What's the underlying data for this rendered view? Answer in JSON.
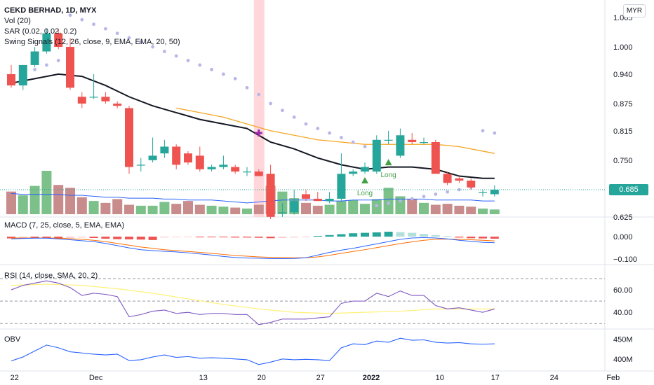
{
  "header": {
    "title": "CEKD BERHAD, 1D, MYX",
    "indicators": [
      "Vol (20)",
      "SAR (0.02, 0.02, 0.2)",
      "Swing Signals (12, 26, close, 9, EMA, EMA, 20, 50)"
    ]
  },
  "currency": "MYR",
  "last_price": "0.685",
  "panes": {
    "macd": "MACD (7, 25, close, 5, EMA, EMA)",
    "rsi": "RSI (14, close, SMA, 20, 2)",
    "obv": "OBV"
  },
  "colors": {
    "up": "#26a69a",
    "down": "#ef5350",
    "vol_up": "#7cc08a",
    "vol_down": "#c98c8c",
    "sar": "#b8b6e8",
    "ema20": "#131722",
    "ema50": "#f5a623",
    "signal": "#43a047",
    "sell_mark": "#9c27b0",
    "highlight": "#ffcdd2",
    "rsi": "#7e57c2",
    "rsi_ma": "#fff176",
    "macd": "#2962ff",
    "macd_signal": "#ff6d00",
    "obv": "#2962ff",
    "vol_ma": "#2962ff"
  },
  "chart_data": [
    {
      "type": "candlestick",
      "title": "CEKD BERHAD, 1D, MYX",
      "x_ticks": [
        "22",
        "Dec",
        "13",
        "20",
        "27",
        "2022",
        "10",
        "17",
        "24",
        "Feb"
      ],
      "y_ticks": [
        "1.065",
        "1.000",
        "0.940",
        "0.875",
        "0.815",
        "0.750",
        "0.685",
        "0.625"
      ],
      "ylim": [
        0.6,
        1.085
      ],
      "candles": [
        {
          "date": "Nov 19",
          "o": 0.94,
          "h": 0.96,
          "l": 0.91,
          "c": 0.915
        },
        {
          "date": "Nov 22",
          "o": 0.915,
          "h": 0.96,
          "l": 0.905,
          "c": 0.96
        },
        {
          "date": "Nov 23",
          "o": 0.96,
          "h": 1.0,
          "l": 0.955,
          "c": 0.99
        },
        {
          "date": "Nov 24",
          "o": 0.99,
          "h": 1.04,
          "l": 0.985,
          "c": 1.03
        },
        {
          "date": "Nov 25",
          "o": 1.03,
          "h": 1.04,
          "l": 0.995,
          "c": 1.0
        },
        {
          "date": "Nov 26",
          "o": 1.0,
          "h": 1.02,
          "l": 0.905,
          "c": 0.91
        },
        {
          "date": "Nov 29",
          "o": 0.89,
          "h": 0.9,
          "l": 0.865,
          "c": 0.875
        },
        {
          "date": "Nov 30",
          "o": 0.89,
          "h": 0.94,
          "l": 0.885,
          "c": 0.89
        },
        {
          "date": "Dec 1",
          "o": 0.89,
          "h": 0.9,
          "l": 0.875,
          "c": 0.88
        },
        {
          "date": "Dec 2",
          "o": 0.875,
          "h": 0.88,
          "l": 0.865,
          "c": 0.87
        },
        {
          "date": "Dec 3",
          "o": 0.865,
          "h": 0.87,
          "l": 0.72,
          "c": 0.735
        },
        {
          "date": "Dec 6",
          "o": 0.74,
          "h": 0.755,
          "l": 0.725,
          "c": 0.74
        },
        {
          "date": "Dec 7",
          "o": 0.75,
          "h": 0.8,
          "l": 0.745,
          "c": 0.76
        },
        {
          "date": "Dec 8",
          "o": 0.765,
          "h": 0.795,
          "l": 0.755,
          "c": 0.78
        },
        {
          "date": "Dec 9",
          "o": 0.78,
          "h": 0.785,
          "l": 0.73,
          "c": 0.74
        },
        {
          "date": "Dec 10",
          "o": 0.765,
          "h": 0.77,
          "l": 0.74,
          "c": 0.745
        },
        {
          "date": "Dec 13",
          "o": 0.76,
          "h": 0.78,
          "l": 0.725,
          "c": 0.73
        },
        {
          "date": "Dec 14",
          "o": 0.73,
          "h": 0.74,
          "l": 0.725,
          "c": 0.735
        },
        {
          "date": "Dec 15",
          "o": 0.735,
          "h": 0.76,
          "l": 0.73,
          "c": 0.74
        },
        {
          "date": "Dec 16",
          "o": 0.735,
          "h": 0.74,
          "l": 0.72,
          "c": 0.725
        },
        {
          "date": "Dec 17",
          "o": 0.725,
          "h": 0.735,
          "l": 0.715,
          "c": 0.725
        },
        {
          "date": "Dec 20",
          "o": 0.725,
          "h": 0.73,
          "l": 0.715,
          "c": 0.715
        },
        {
          "date": "Dec 21",
          "o": 0.72,
          "h": 0.74,
          "l": 0.62,
          "c": 0.625
        },
        {
          "date": "Dec 22",
          "o": 0.635,
          "h": 0.655,
          "l": 0.625,
          "c": 0.635
        },
        {
          "date": "Dec 23",
          "o": 0.635,
          "h": 0.685,
          "l": 0.63,
          "c": 0.66
        },
        {
          "date": "Dec 24",
          "o": 0.675,
          "h": 0.685,
          "l": 0.66,
          "c": 0.665
        },
        {
          "date": "Dec 27",
          "o": 0.665,
          "h": 0.68,
          "l": 0.66,
          "c": 0.66
        },
        {
          "date": "Dec 28",
          "o": 0.66,
          "h": 0.68,
          "l": 0.655,
          "c": 0.665
        },
        {
          "date": "Dec 29",
          "o": 0.665,
          "h": 0.765,
          "l": 0.66,
          "c": 0.72
        },
        {
          "date": "Dec 30",
          "o": 0.72,
          "h": 0.73,
          "l": 0.715,
          "c": 0.725
        },
        {
          "date": "Dec 31",
          "o": 0.725,
          "h": 0.745,
          "l": 0.72,
          "c": 0.735
        },
        {
          "date": "Jan 3",
          "o": 0.725,
          "h": 0.805,
          "l": 0.72,
          "c": 0.795
        },
        {
          "date": "Jan 4",
          "o": 0.795,
          "h": 0.815,
          "l": 0.785,
          "c": 0.795
        },
        {
          "date": "Jan 5",
          "o": 0.76,
          "h": 0.82,
          "l": 0.755,
          "c": 0.805
        },
        {
          "date": "Jan 6",
          "o": 0.795,
          "h": 0.81,
          "l": 0.785,
          "c": 0.79
        },
        {
          "date": "Jan 7",
          "o": 0.79,
          "h": 0.8,
          "l": 0.785,
          "c": 0.79
        },
        {
          "date": "Jan 10",
          "o": 0.79,
          "h": 0.795,
          "l": 0.72,
          "c": 0.72
        },
        {
          "date": "Jan 11",
          "o": 0.72,
          "h": 0.725,
          "l": 0.695,
          "c": 0.7
        },
        {
          "date": "Jan 12",
          "o": 0.71,
          "h": 0.715,
          "l": 0.7,
          "c": 0.705
        },
        {
          "date": "Jan 13",
          "o": 0.705,
          "h": 0.71,
          "l": 0.685,
          "c": 0.69
        },
        {
          "date": "Jan 14",
          "o": 0.68,
          "h": 0.685,
          "l": 0.67,
          "c": 0.68
        },
        {
          "date": "Jan 17",
          "o": 0.675,
          "h": 0.695,
          "l": 0.67,
          "c": 0.685
        }
      ],
      "sar": [
        [
          0,
          0.92
        ],
        [
          1,
          0.93
        ],
        [
          2,
          0.95
        ],
        [
          3,
          0.96
        ],
        [
          4,
          0.97
        ],
        [
          5,
          1.07
        ],
        [
          6,
          1.06
        ],
        [
          7,
          1.05
        ],
        [
          8,
          1.04
        ],
        [
          9,
          1.03
        ],
        [
          10,
          1.02
        ],
        [
          11,
          1.01
        ],
        [
          12,
          1.0
        ],
        [
          13,
          0.99
        ],
        [
          14,
          0.98
        ],
        [
          15,
          0.97
        ],
        [
          16,
          0.96
        ],
        [
          17,
          0.95
        ],
        [
          18,
          0.94
        ],
        [
          19,
          0.93
        ],
        [
          20,
          0.91
        ],
        [
          21,
          0.895
        ],
        [
          22,
          0.875
        ],
        [
          23,
          0.86
        ],
        [
          24,
          0.845
        ],
        [
          25,
          0.83
        ],
        [
          26,
          0.82
        ],
        [
          27,
          0.81
        ],
        [
          28,
          0.8
        ],
        [
          29,
          0.79
        ],
        [
          30,
          0.78
        ],
        [
          31,
          0.65
        ],
        [
          32,
          0.655
        ],
        [
          33,
          0.66
        ],
        [
          34,
          0.665
        ],
        [
          35,
          0.67
        ],
        [
          36,
          0.675
        ],
        [
          37,
          0.68
        ],
        [
          38,
          0.685
        ],
        [
          39,
          0.69
        ],
        [
          40,
          0.815
        ],
        [
          41,
          0.81
        ]
      ],
      "ema20": [
        [
          0,
          0.92
        ],
        [
          2,
          0.93
        ],
        [
          4,
          0.94
        ],
        [
          6,
          0.935
        ],
        [
          8,
          0.915
        ],
        [
          10,
          0.89
        ],
        [
          12,
          0.87
        ],
        [
          14,
          0.855
        ],
        [
          16,
          0.84
        ],
        [
          18,
          0.83
        ],
        [
          20,
          0.82
        ],
        [
          22,
          0.79
        ],
        [
          24,
          0.775
        ],
        [
          26,
          0.755
        ],
        [
          28,
          0.74
        ],
        [
          30,
          0.73
        ],
        [
          32,
          0.735
        ],
        [
          34,
          0.735
        ],
        [
          36,
          0.73
        ],
        [
          38,
          0.715
        ],
        [
          40,
          0.71
        ],
        [
          41,
          0.71
        ]
      ],
      "ema50": [
        [
          14,
          0.865
        ],
        [
          16,
          0.855
        ],
        [
          18,
          0.845
        ],
        [
          20,
          0.83
        ],
        [
          22,
          0.815
        ],
        [
          24,
          0.805
        ],
        [
          26,
          0.795
        ],
        [
          28,
          0.79
        ],
        [
          30,
          0.785
        ],
        [
          32,
          0.785
        ],
        [
          34,
          0.785
        ],
        [
          36,
          0.785
        ],
        [
          38,
          0.78
        ],
        [
          40,
          0.77
        ],
        [
          41,
          0.765
        ]
      ],
      "highlight_index": 21,
      "sell_marker": {
        "index": 21,
        "price": 0.81
      },
      "signals": [
        {
          "index": 30,
          "price": 0.705,
          "label": "Long"
        },
        {
          "index": 32,
          "price": 0.745,
          "label": "Long"
        }
      ]
    },
    {
      "type": "bar",
      "title": "Vol (20)",
      "volumes": [
        24,
        20,
        30,
        46,
        31,
        28,
        18,
        14,
        12,
        16,
        10,
        9,
        9,
        13,
        11,
        14,
        10,
        9,
        8,
        7,
        6,
        10,
        30,
        24,
        17,
        12,
        9,
        10,
        14,
        15,
        11,
        16,
        28,
        19,
        16,
        12,
        10,
        11,
        9,
        8,
        6,
        5
      ],
      "volume_ma": [
        22,
        21,
        21,
        21,
        21,
        20,
        20,
        19,
        18,
        18,
        17,
        17,
        17,
        16,
        16,
        15,
        15,
        15,
        14,
        13,
        12,
        13,
        14,
        15,
        15,
        15,
        15,
        14,
        14,
        15,
        15,
        15,
        16,
        16,
        16,
        16,
        15,
        15,
        15,
        15,
        14,
        14
      ]
    },
    {
      "type": "line",
      "title": "MACD (7, 25, close, 5, EMA, EMA)",
      "y_ticks": [
        "0.000",
        "−0.100"
      ],
      "ylim": [
        -0.115,
        0.05
      ],
      "histogram": [
        -0.008,
        -0.006,
        -0.006,
        -0.006,
        -0.01,
        -0.006,
        -0.004,
        -0.006,
        -0.009,
        -0.011,
        -0.012,
        -0.013,
        -0.015,
        -0.004,
        -0.003,
        -0.002,
        -0.002,
        -0.002,
        -0.002,
        -0.004,
        -0.004,
        -0.005,
        -0.007,
        -0.006,
        -0.004,
        -0.002,
        0.003,
        0.007,
        0.011,
        0.015,
        0.017,
        0.019,
        0.022,
        0.02,
        0.017,
        0.012,
        0.007,
        0.002,
        -0.004,
        -0.007,
        -0.008,
        -0.009
      ],
      "macd": [
        -0.01,
        -0.008,
        -0.007,
        -0.007,
        -0.01,
        -0.014,
        -0.018,
        -0.022,
        -0.03,
        -0.04,
        -0.05,
        -0.058,
        -0.062,
        -0.065,
        -0.068,
        -0.072,
        -0.077,
        -0.082,
        -0.088,
        -0.093,
        -0.095,
        -0.096,
        -0.098,
        -0.098,
        -0.097,
        -0.094,
        -0.082,
        -0.07,
        -0.06,
        -0.052,
        -0.042,
        -0.032,
        -0.022,
        -0.012,
        -0.006,
        -0.004,
        -0.006,
        -0.01,
        -0.016,
        -0.021,
        -0.025,
        -0.027
      ],
      "signal": [
        -0.006,
        -0.006,
        -0.006,
        -0.006,
        -0.007,
        -0.009,
        -0.012,
        -0.016,
        -0.022,
        -0.03,
        -0.038,
        -0.046,
        -0.052,
        -0.058,
        -0.062,
        -0.066,
        -0.07,
        -0.074,
        -0.079,
        -0.084,
        -0.087,
        -0.09,
        -0.092,
        -0.093,
        -0.094,
        -0.094,
        -0.09,
        -0.083,
        -0.074,
        -0.066,
        -0.058,
        -0.049,
        -0.04,
        -0.031,
        -0.023,
        -0.016,
        -0.012,
        -0.011,
        -0.012,
        -0.014,
        -0.016,
        -0.019
      ]
    },
    {
      "type": "line",
      "title": "RSI (14, close, SMA, 20, 2)",
      "y_ticks": [
        "60.00",
        "40.00"
      ],
      "ylim": [
        27,
        80
      ],
      "rsi": [
        [
          0,
          60
        ],
        [
          1,
          64
        ],
        [
          2,
          66
        ],
        [
          3,
          68
        ],
        [
          4,
          66
        ],
        [
          5,
          62
        ],
        [
          6,
          55
        ],
        [
          7,
          57
        ],
        [
          8,
          56
        ],
        [
          9,
          54
        ],
        [
          10,
          36
        ],
        [
          11,
          38
        ],
        [
          12,
          41
        ],
        [
          13,
          42
        ],
        [
          14,
          39
        ],
        [
          15,
          40
        ],
        [
          16,
          38
        ],
        [
          17,
          39
        ],
        [
          18,
          39
        ],
        [
          19,
          38
        ],
        [
          20,
          38
        ],
        [
          21,
          29
        ],
        [
          22,
          31
        ],
        [
          23,
          34
        ],
        [
          24,
          34
        ],
        [
          25,
          34
        ],
        [
          26,
          35
        ],
        [
          27,
          36
        ],
        [
          28,
          48
        ],
        [
          29,
          50
        ],
        [
          30,
          50
        ],
        [
          31,
          57
        ],
        [
          32,
          54
        ],
        [
          33,
          59
        ],
        [
          34,
          55
        ],
        [
          35,
          55
        ],
        [
          36,
          46
        ],
        [
          37,
          43
        ],
        [
          38,
          44
        ],
        [
          39,
          42
        ],
        [
          40,
          40
        ],
        [
          41,
          43
        ]
      ],
      "rsi_ma": [
        [
          0,
          64
        ],
        [
          3,
          65
        ],
        [
          6,
          64
        ],
        [
          9,
          61
        ],
        [
          12,
          57
        ],
        [
          15,
          52
        ],
        [
          18,
          47
        ],
        [
          21,
          43
        ],
        [
          24,
          40
        ],
        [
          27,
          39
        ],
        [
          30,
          40
        ],
        [
          33,
          41
        ],
        [
          36,
          43
        ],
        [
          39,
          43
        ],
        [
          41,
          43
        ]
      ]
    },
    {
      "type": "line",
      "title": "OBV",
      "y_ticks": [
        "450M",
        "400M"
      ],
      "ylim": [
        375,
        470
      ],
      "obv": [
        [
          0,
          395
        ],
        [
          1,
          405
        ],
        [
          2,
          420
        ],
        [
          3,
          435
        ],
        [
          4,
          428
        ],
        [
          5,
          418
        ],
        [
          6,
          415
        ],
        [
          7,
          412
        ],
        [
          8,
          410
        ],
        [
          9,
          412
        ],
        [
          10,
          396
        ],
        [
          11,
          398
        ],
        [
          12,
          405
        ],
        [
          13,
          410
        ],
        [
          14,
          404
        ],
        [
          15,
          406
        ],
        [
          16,
          402
        ],
        [
          17,
          403
        ],
        [
          18,
          402
        ],
        [
          19,
          400
        ],
        [
          20,
          398
        ],
        [
          21,
          386
        ],
        [
          22,
          392
        ],
        [
          23,
          400
        ],
        [
          24,
          398
        ],
        [
          25,
          399
        ],
        [
          26,
          398
        ],
        [
          27,
          396
        ],
        [
          28,
          428
        ],
        [
          29,
          438
        ],
        [
          30,
          436
        ],
        [
          31,
          445
        ],
        [
          32,
          442
        ],
        [
          33,
          452
        ],
        [
          34,
          447
        ],
        [
          35,
          448
        ],
        [
          36,
          442
        ],
        [
          37,
          440
        ],
        [
          38,
          441
        ],
        [
          39,
          438
        ],
        [
          40,
          437
        ],
        [
          41,
          438
        ]
      ]
    }
  ]
}
